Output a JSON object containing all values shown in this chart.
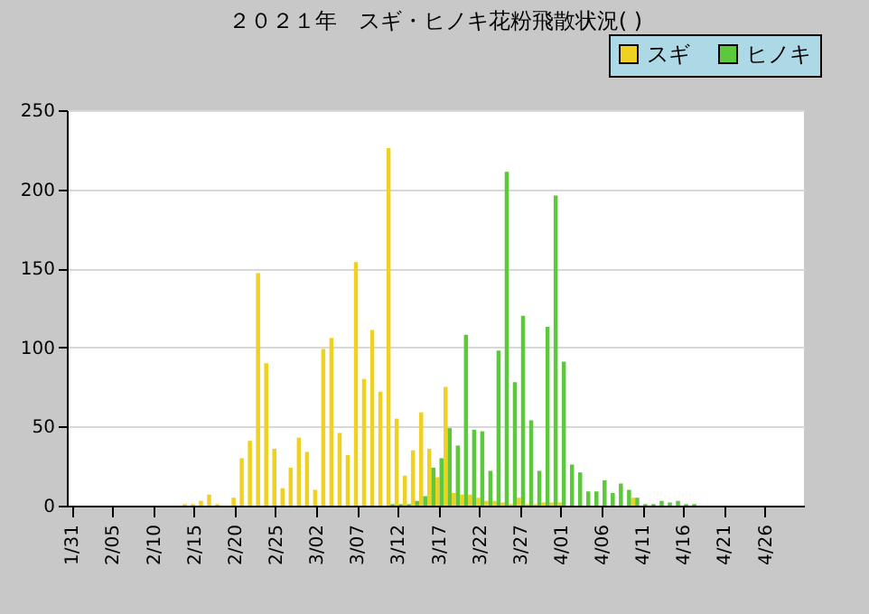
{
  "chart_data": {
    "type": "bar",
    "title": "２０２１年　スギ・ヒノキ花粉飛散状況( )",
    "categories": [
      "1/31",
      null,
      null,
      null,
      null,
      "2/05",
      null,
      null,
      null,
      null,
      "2/10",
      null,
      null,
      null,
      null,
      "2/15",
      null,
      null,
      null,
      null,
      "2/20",
      null,
      null,
      null,
      null,
      "2/25",
      null,
      null,
      null,
      null,
      "3/02",
      null,
      null,
      null,
      null,
      "3/07",
      null,
      null,
      null,
      null,
      "3/12",
      null,
      null,
      null,
      null,
      "3/17",
      null,
      null,
      null,
      null,
      "3/22",
      null,
      null,
      null,
      null,
      "3/27",
      null,
      null,
      null,
      null,
      "4/01",
      null,
      null,
      null,
      null,
      "4/06",
      null,
      null,
      null,
      null,
      "4/11",
      null,
      null,
      null,
      null,
      "4/16",
      null,
      null,
      null,
      null,
      "4/21",
      null,
      null,
      null,
      null,
      "4/26",
      null,
      null,
      null,
      null
    ],
    "series": [
      {
        "name": "スギ",
        "color": "#f0d020",
        "values": [
          null,
          null,
          null,
          null,
          null,
          null,
          null,
          null,
          null,
          null,
          null,
          null,
          null,
          null,
          1,
          1,
          3,
          7,
          1,
          null,
          5,
          30,
          41,
          147,
          90,
          36,
          11,
          24,
          43,
          34,
          10,
          99,
          106,
          46,
          32,
          154,
          80,
          111,
          72,
          226,
          55,
          19,
          35,
          59,
          36,
          18,
          75,
          8,
          7,
          7,
          5,
          3,
          3,
          2,
          1,
          5,
          1,
          1,
          2,
          2,
          2,
          null,
          null,
          null,
          null,
          null,
          null,
          null,
          null,
          5,
          null,
          null,
          null,
          null,
          null,
          null,
          null,
          null,
          null,
          null,
          null,
          null,
          null,
          null,
          null,
          null,
          null,
          null,
          null,
          null
        ]
      },
      {
        "name": "ヒノキ",
        "color": "#5cc83c",
        "values": [
          null,
          null,
          null,
          null,
          null,
          null,
          null,
          null,
          null,
          null,
          null,
          null,
          null,
          null,
          null,
          null,
          null,
          null,
          null,
          null,
          null,
          null,
          null,
          null,
          null,
          null,
          null,
          null,
          null,
          null,
          null,
          null,
          null,
          null,
          null,
          null,
          null,
          null,
          null,
          1,
          1,
          1,
          3,
          6,
          24,
          30,
          49,
          38,
          108,
          48,
          47,
          22,
          98,
          211,
          78,
          120,
          54,
          22,
          113,
          196,
          91,
          26,
          21,
          9,
          9,
          16,
          8,
          14,
          10,
          5,
          1,
          1,
          3,
          2,
          3,
          1,
          1,
          null,
          null,
          null,
          null,
          null,
          null,
          null,
          null,
          null,
          null,
          null,
          null,
          null
        ]
      }
    ],
    "ylim": [
      0,
      250
    ],
    "yticks": [
      0,
      50,
      100,
      150,
      200,
      250
    ],
    "grid": "y",
    "legend": "top right"
  }
}
